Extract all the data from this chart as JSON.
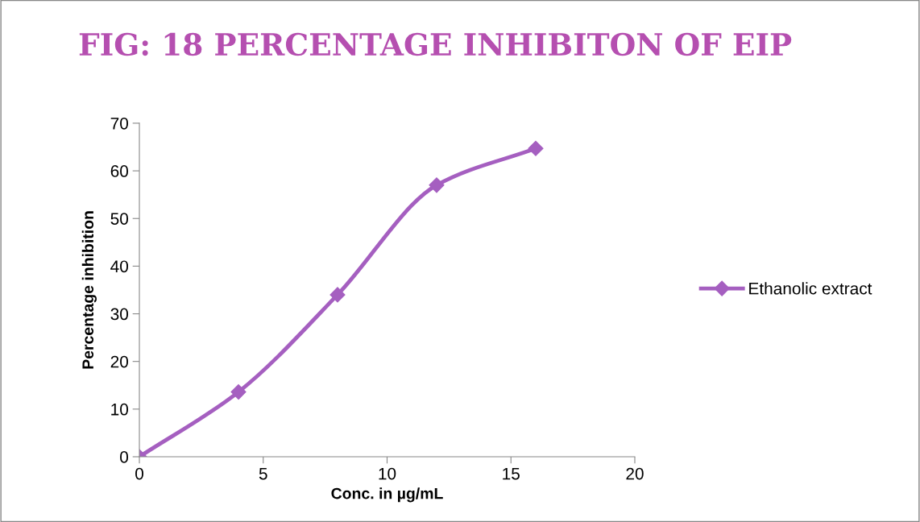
{
  "chart_data": {
    "type": "line",
    "title": "FIG: 18 PERCENTAGE INHIBITON OF EIP",
    "xlabel": "Conc. in µg/mL",
    "ylabel": "Percentage inhibition",
    "x": [
      0,
      4,
      8,
      12,
      16
    ],
    "series": [
      {
        "name": "Ethanolic extract",
        "color": "#a55fc0",
        "values": [
          0,
          13.6,
          34,
          57,
          64.7
        ]
      }
    ],
    "xlim": [
      0,
      20
    ],
    "xticks": [
      0,
      5,
      10,
      15,
      20
    ],
    "ylim": [
      0,
      70
    ],
    "yticks": [
      0,
      10,
      20,
      30,
      40,
      50,
      60,
      70
    ],
    "grid": false,
    "legend": "right",
    "marker": "diamond",
    "line_style": "solid"
  }
}
